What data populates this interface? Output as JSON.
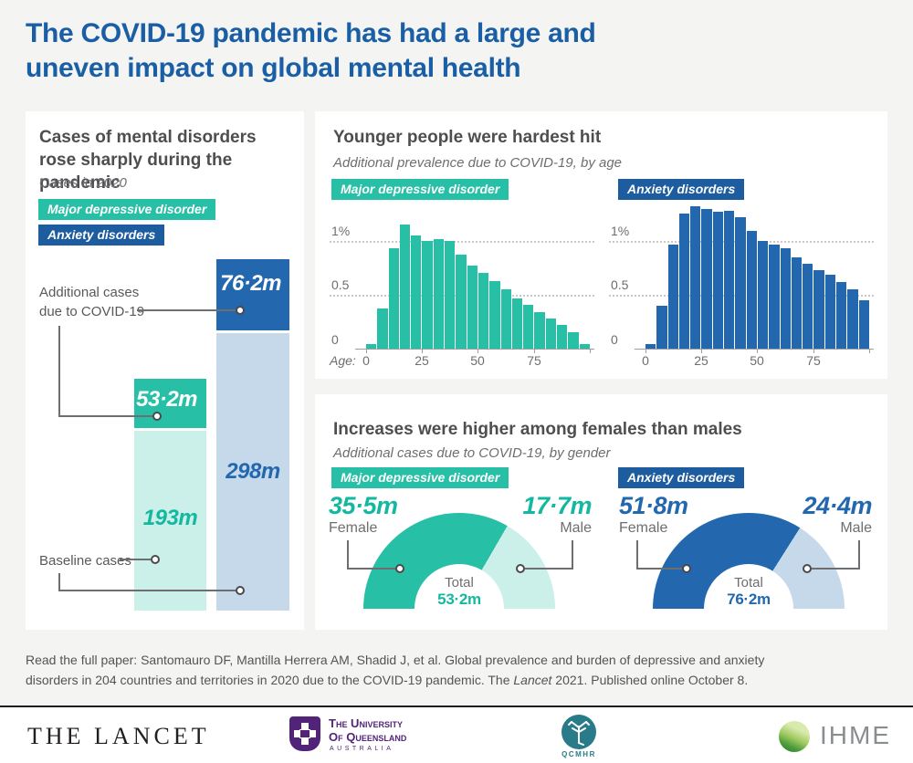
{
  "header": {
    "title_line1": "The COVID-19 pandemic has had a large and",
    "title_line2": "uneven impact on global mental health"
  },
  "legend": {
    "mdd": "Major depressive disorder",
    "anx": "Anxiety disorders"
  },
  "colors": {
    "title_blue": "#1A5FA5",
    "teal": "#27BFA6",
    "teal_light": "#CBEFE9",
    "teal_text": "#14B8A0",
    "blue": "#2368AF",
    "blue_light": "#C6D9EB",
    "badge_blue": "#1C5C9F"
  },
  "left_panel": {
    "title_line1": "Cases of mental disorders",
    "title_line2": "rose sharply during the pandemic",
    "subtitle": "Cases in 2020",
    "note_additional_line1": "Additional cases",
    "note_additional_line2": "due to COVID-19",
    "note_baseline": "Baseline cases"
  },
  "age_panel": {
    "title": "Younger people were hardest hit",
    "subtitle": "Additional prevalence due to COVID-19, by age",
    "age_axis_label": "Age:"
  },
  "gender_panel": {
    "title": "Increases were higher among females than males",
    "subtitle": "Additional cases due to COVID-19, by gender"
  },
  "footer": {
    "line1": "Read the full paper: Santomauro DF, Mantilla Herrera AM, Shadid J, et al. Global prevalence and burden of depressive and anxiety",
    "line2_a": "disorders in 204 countries and territories in 2020 due to the COVID-19 pandemic. The ",
    "line2_b": "Lancet",
    "line2_c": " 2021. Published online October 8."
  },
  "logos": {
    "lancet": "THE LANCET",
    "uq_line1": "The University",
    "uq_line2": "Of Queensland",
    "uq_line3": "AUSTRALIA",
    "qcmhr": "QCMHR",
    "ihme": "IHME"
  },
  "chart_data": [
    {
      "type": "bar",
      "variant": "stacked",
      "title": "Cases in 2020",
      "unit": "millions of cases",
      "categories": [
        "Major depressive disorder",
        "Anxiety disorders"
      ],
      "series": [
        {
          "name": "Baseline cases",
          "values": [
            193,
            298
          ],
          "labels": [
            "193m",
            "298m"
          ],
          "colors": [
            "#CBEFE9",
            "#C6D9EB"
          ]
        },
        {
          "name": "Additional cases due to COVID-19",
          "values": [
            53.2,
            76.2
          ],
          "labels": [
            "53·2m",
            "76·2m"
          ],
          "colors": [
            "#27BFA6",
            "#2368AF"
          ]
        }
      ]
    },
    {
      "type": "bar",
      "title": "Major depressive disorder — additional prevalence due to COVID-19, by age",
      "bar_color": "#27BFA6",
      "age_groups": [
        "0-4",
        "5-9",
        "10-14",
        "15-19",
        "20-24",
        "25-29",
        "30-34",
        "35-39",
        "40-44",
        "45-49",
        "50-54",
        "55-59",
        "60-64",
        "65-69",
        "70-74",
        "75-79",
        "80-84",
        "85-89",
        "90-94",
        "95+"
      ],
      "values": [
        0.04,
        0.37,
        0.93,
        1.15,
        1.05,
        1.0,
        1.02,
        1.0,
        0.87,
        0.77,
        0.7,
        0.63,
        0.55,
        0.47,
        0.41,
        0.34,
        0.28,
        0.22,
        0.15,
        0.04
      ],
      "x_ticks": [
        "0",
        "25",
        "50",
        "75"
      ],
      "y_ticks": [
        "1%",
        "0.5",
        "0"
      ],
      "xlabel": "Age",
      "ylim": [
        0,
        1.35
      ],
      "unit": "percent",
      "grid": "dotted horizontal at 0.5 and 1.0"
    },
    {
      "type": "bar",
      "title": "Anxiety disorders — additional prevalence due to COVID-19, by age",
      "bar_color": "#2368AF",
      "age_groups": [
        "0-4",
        "5-9",
        "10-14",
        "15-19",
        "20-24",
        "25-29",
        "30-34",
        "35-39",
        "40-44",
        "45-49",
        "50-54",
        "55-59",
        "60-64",
        "65-69",
        "70-74",
        "75-79",
        "80-84",
        "85-89",
        "90-94",
        "95+"
      ],
      "values": [
        0.04,
        0.4,
        0.97,
        1.25,
        1.32,
        1.3,
        1.27,
        1.28,
        1.22,
        1.09,
        1.0,
        0.97,
        0.93,
        0.85,
        0.79,
        0.73,
        0.69,
        0.62,
        0.55,
        0.45
      ],
      "x_ticks": [
        "0",
        "25",
        "50",
        "75"
      ],
      "y_ticks": [
        "1%",
        "0.5",
        "0"
      ],
      "xlabel": "Age",
      "ylim": [
        0,
        1.35
      ],
      "unit": "percent",
      "grid": "dotted horizontal at 0.5 and 1.0"
    },
    {
      "type": "pie",
      "variant": "semi-donut",
      "title": "Major depressive disorder — additional cases due to COVID-19, by gender",
      "slices": [
        {
          "label": "Female",
          "value": 35.5,
          "display": "35·5m",
          "color": "#27BFA6"
        },
        {
          "label": "Male",
          "value": 17.7,
          "display": "17·7m",
          "color": "#CBEFE9"
        }
      ],
      "total_label": "Total",
      "total_display": "53·2m",
      "unit": "millions"
    },
    {
      "type": "pie",
      "variant": "semi-donut",
      "title": "Anxiety disorders — additional cases due to COVID-19, by gender",
      "slices": [
        {
          "label": "Female",
          "value": 51.8,
          "display": "51·8m",
          "color": "#2368AF"
        },
        {
          "label": "Male",
          "value": 24.4,
          "display": "24·4m",
          "color": "#C6D9EB"
        }
      ],
      "total_label": "Total",
      "total_display": "76·2m",
      "unit": "millions"
    }
  ]
}
